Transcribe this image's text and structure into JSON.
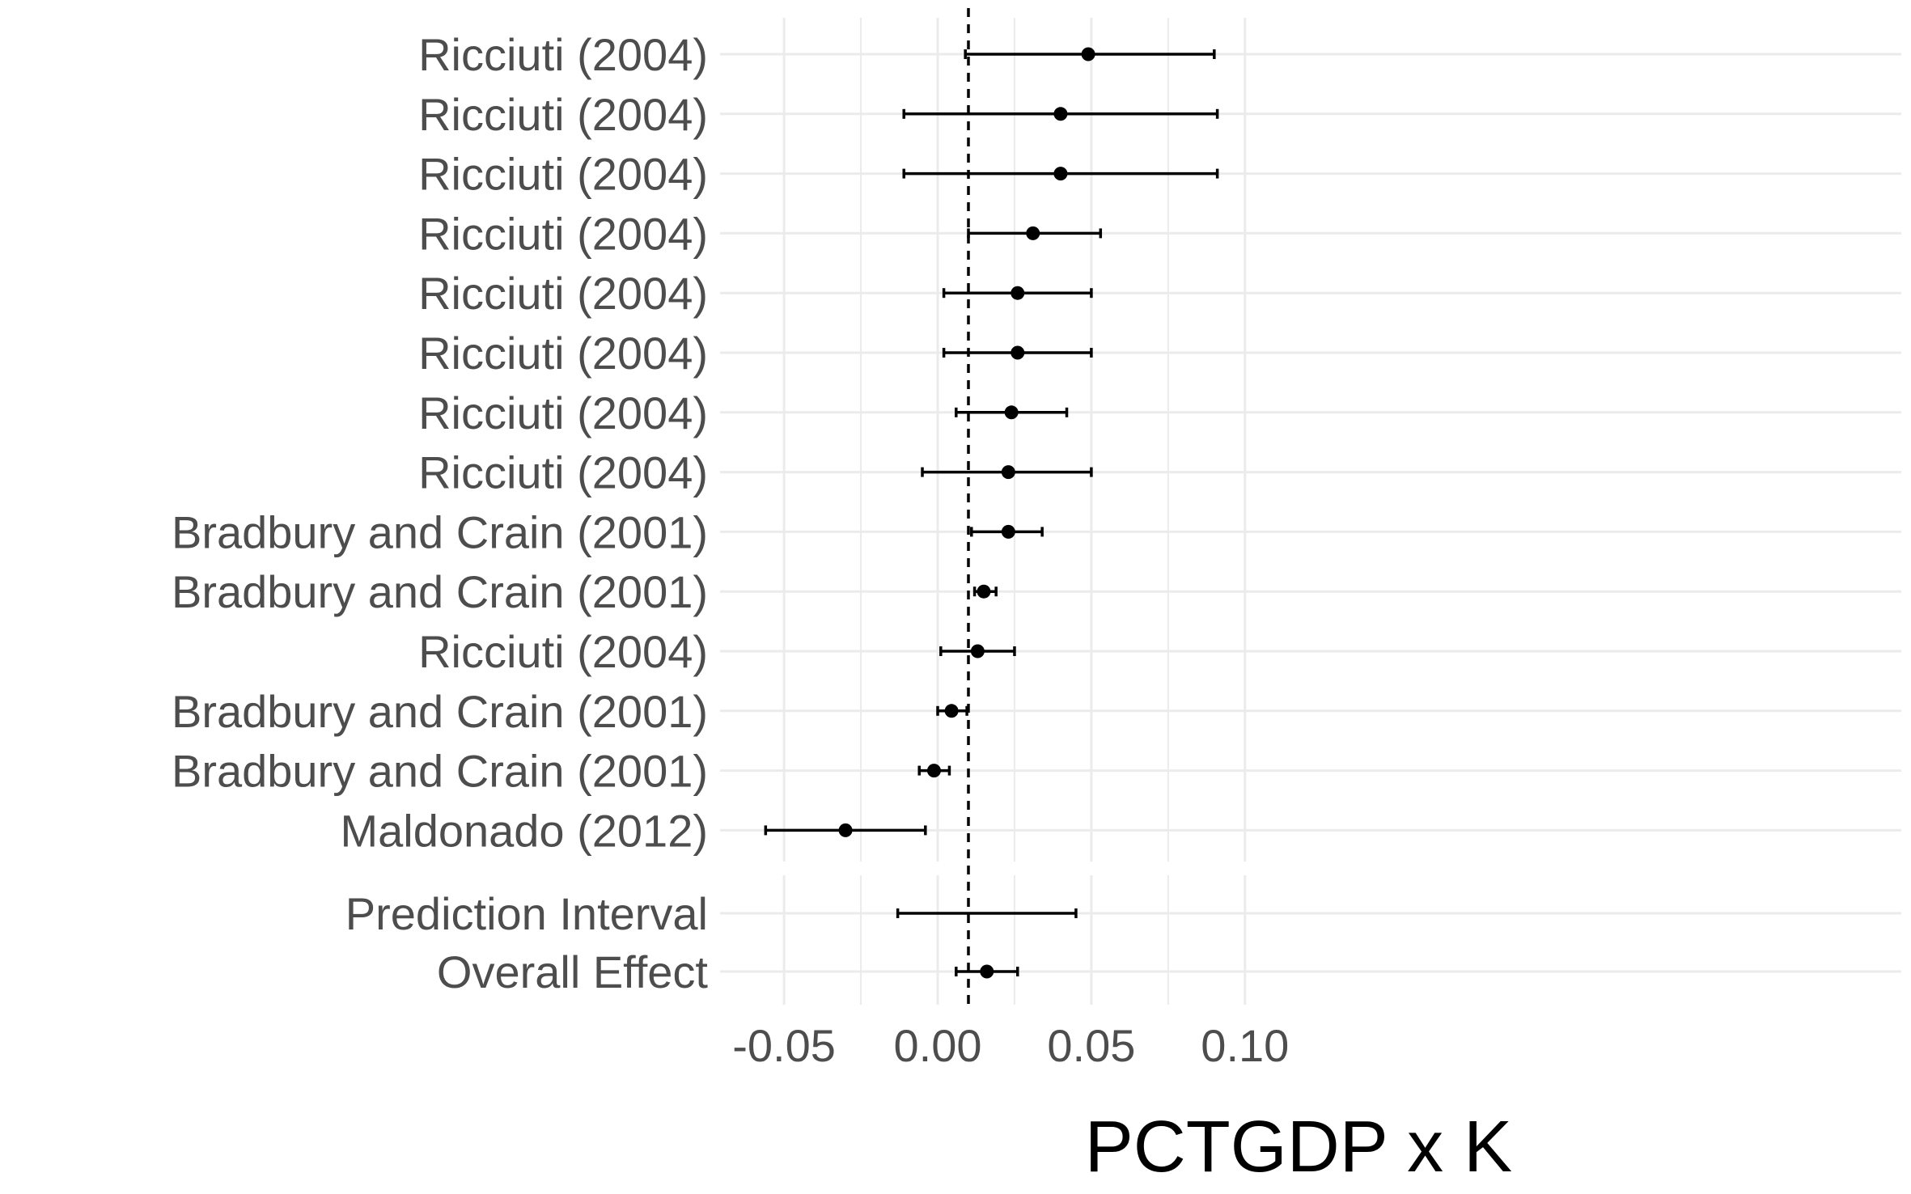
{
  "chart_data": {
    "type": "forest",
    "xlabel": "PCTGDP x K",
    "xlim": [
      -0.075,
      0.105
    ],
    "xticks": [
      -0.05,
      0.0,
      0.05,
      0.1
    ],
    "xtick_labels": [
      "-0.05",
      "0.00",
      "0.05",
      "0.10"
    ],
    "reference_line": {
      "x": 0.01,
      "style": "dashed"
    },
    "grid": true,
    "studies": [
      {
        "label": "Ricciuti (2004)",
        "estimate": 0.049,
        "lower": 0.009,
        "upper": 0.09
      },
      {
        "label": "Ricciuti (2004)",
        "estimate": 0.04,
        "lower": -0.011,
        "upper": 0.091
      },
      {
        "label": "Ricciuti (2004)",
        "estimate": 0.04,
        "lower": -0.011,
        "upper": 0.091
      },
      {
        "label": "Ricciuti (2004)",
        "estimate": 0.031,
        "lower": 0.01,
        "upper": 0.053
      },
      {
        "label": "Ricciuti (2004)",
        "estimate": 0.026,
        "lower": 0.002,
        "upper": 0.05
      },
      {
        "label": "Ricciuti (2004)",
        "estimate": 0.026,
        "lower": 0.002,
        "upper": 0.05
      },
      {
        "label": "Ricciuti (2004)",
        "estimate": 0.024,
        "lower": 0.006,
        "upper": 0.042
      },
      {
        "label": "Ricciuti (2004)",
        "estimate": 0.023,
        "lower": -0.005,
        "upper": 0.05
      },
      {
        "label": "Bradbury and Crain (2001)",
        "estimate": 0.023,
        "lower": 0.011,
        "upper": 0.034
      },
      {
        "label": "Bradbury and Crain (2001)",
        "estimate": 0.015,
        "lower": 0.012,
        "upper": 0.019
      },
      {
        "label": "Ricciuti (2004)",
        "estimate": 0.013,
        "lower": 0.001,
        "upper": 0.025
      },
      {
        "label": "Bradbury and Crain (2001)",
        "estimate": 0.0045,
        "lower": 0.0,
        "upper": 0.0095
      },
      {
        "label": "Bradbury and Crain (2001)",
        "estimate": -0.0012,
        "lower": -0.006,
        "upper": 0.0038
      },
      {
        "label": "Maldonado (2012)",
        "estimate": -0.03,
        "lower": -0.056,
        "upper": -0.004
      }
    ],
    "summary": [
      {
        "label": "Prediction Interval",
        "estimate": null,
        "lower": -0.013,
        "upper": 0.045
      },
      {
        "label": "Overall Effect",
        "estimate": 0.016,
        "lower": 0.006,
        "upper": 0.026
      }
    ]
  }
}
